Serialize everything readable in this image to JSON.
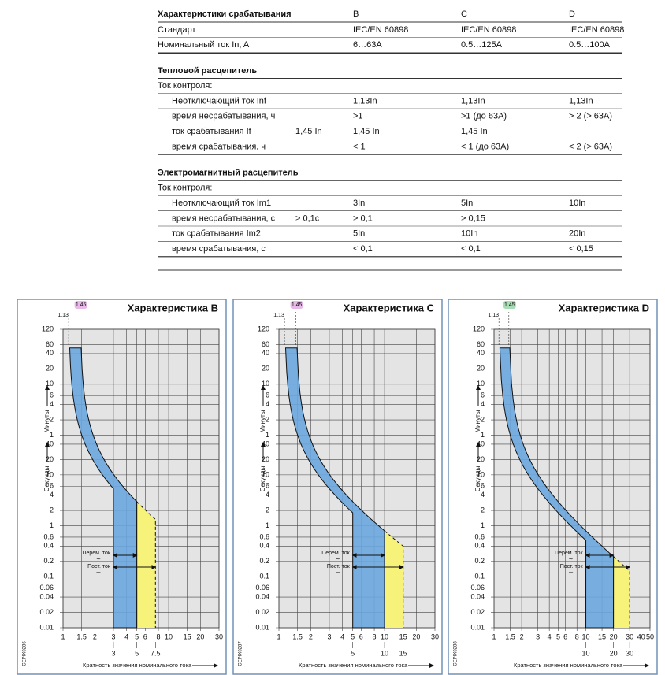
{
  "table": {
    "header": [
      "Характеристики срабатывания",
      "B",
      "C",
      "D"
    ],
    "rows": [
      {
        "label": "Стандарт",
        "values": [
          "IEC/EN 60898",
          "IEC/EN 60898",
          "IEC/EN 60898"
        ]
      },
      {
        "label": "Номинальный ток In, A",
        "values": [
          "6…63A",
          "0.5…125A",
          "0.5…100A"
        ]
      }
    ],
    "sections": [
      {
        "title": "Тепловой расцепитель",
        "subtitle": "Ток контроля:",
        "rows": [
          {
            "label": "Неотключающий ток  Inf",
            "note": null,
            "values": [
              "1,13In",
              "1,13In",
              "1,13In"
            ]
          },
          {
            "label": "время несрабатывания, ч",
            "note": null,
            "values": [
              ">1",
              ">1 (до 63A)",
              "> 2 (> 63A)"
            ]
          },
          {
            "label": "ток срабатывания If",
            "note": "1,45 In",
            "values": [
              "1,45 In",
              "1,45 In",
              null
            ]
          },
          {
            "label": "время срабатывания, ч",
            "note": null,
            "values": [
              "< 1",
              "< 1 (до 63A)",
              "< 2 (> 63A)"
            ]
          }
        ]
      },
      {
        "title": "Электромагнитный расцепитель",
        "subtitle": "Ток контроля:",
        "rows": [
          {
            "label": "Неотключающий ток Im1",
            "note": null,
            "values": [
              "3In",
              "5In",
              "10In"
            ]
          },
          {
            "label": "время несрабатывания, с",
            "note": "> 0,1с",
            "values": [
              "> 0,1",
              "> 0,15",
              null
            ]
          },
          {
            "label": "ток срабатывания Im2",
            "note": null,
            "values": [
              "5In",
              "10In",
              "20In"
            ]
          },
          {
            "label": "время срабатывания, с",
            "note": null,
            "values": [
              "< 0,1",
              "< 0,1",
              "< 0,15"
            ]
          }
        ]
      }
    ]
  },
  "charts": [
    {
      "title": "Характеристика B",
      "thermal": [
        {
          "value": 1.13,
          "label": "1.13"
        },
        {
          "value": 1.45,
          "label": "1.45"
        }
      ],
      "highlight": "#e7b8e8",
      "xlim": [
        1,
        30
      ],
      "xticks": [
        1,
        1.5,
        2,
        3,
        4,
        5,
        6,
        8,
        10,
        15,
        20,
        30
      ],
      "magnetic": [
        3,
        5,
        7.5
      ],
      "ylim": [
        0.01,
        7200
      ],
      "minutes_ticks": [
        120,
        60,
        40,
        20,
        10,
        6,
        4,
        2,
        1
      ],
      "seconds_ticks": [
        40,
        20,
        10,
        6,
        4,
        2,
        1,
        0.6,
        0.4,
        0.2,
        0.1,
        0.06,
        0.04,
        0.02,
        0.01
      ],
      "minutes_label": "Минуты",
      "seconds_label": "Секунды",
      "xlabel": "Кратность значения номинального тока",
      "code": "CEPIX0286",
      "ac_label": "Перем. ток",
      "ac_symbol": "~",
      "dc_label": "Пост. ток",
      "dc_symbol": "⎓"
    },
    {
      "title": "Характеристика C",
      "thermal": [
        {
          "value": 1.13,
          "label": "1.13"
        },
        {
          "value": 1.45,
          "label": "1.45"
        }
      ],
      "highlight": "#e7b8e8",
      "xlim": [
        1,
        30
      ],
      "xticks": [
        1,
        1.5,
        2,
        3,
        4,
        5,
        6,
        8,
        10,
        15,
        20,
        30
      ],
      "magnetic": [
        5,
        10,
        15
      ],
      "ylim": [
        0.01,
        7200
      ],
      "minutes_ticks": [
        120,
        60,
        40,
        20,
        10,
        6,
        4,
        2,
        1
      ],
      "seconds_ticks": [
        40,
        20,
        10,
        6,
        4,
        2,
        1,
        0.6,
        0.4,
        0.2,
        0.1,
        0.06,
        0.04,
        0.02,
        0.01
      ],
      "minutes_label": "Минуты",
      "seconds_label": "Секунды",
      "xlabel": "Кратность значения номинального тока",
      "code": "CEPIX0287",
      "ac_label": "Перем. ток",
      "ac_symbol": "~",
      "dc_label": "Пост. ток",
      "dc_symbol": "⎓"
    },
    {
      "title": "Характеристика D",
      "thermal": [
        {
          "value": 1.13,
          "label": "1.13"
        },
        {
          "value": 1.45,
          "label": "1.45"
        }
      ],
      "highlight": "#a8dcb4",
      "xlim": [
        1,
        50
      ],
      "xticks": [
        1,
        1.5,
        2,
        3,
        4,
        5,
        6,
        8,
        10,
        15,
        20,
        30,
        40,
        50
      ],
      "magnetic": [
        10,
        20,
        30
      ],
      "ylim": [
        0.01,
        7200
      ],
      "minutes_ticks": [
        120,
        60,
        40,
        20,
        10,
        6,
        4,
        2,
        1
      ],
      "seconds_ticks": [
        40,
        20,
        10,
        6,
        4,
        2,
        1,
        0.6,
        0.4,
        0.2,
        0.1,
        0.06,
        0.04,
        0.02,
        0.01
      ],
      "minutes_label": "Минуты",
      "seconds_label": "Секунды",
      "xlabel": "Кратность значения номинального тока",
      "code": "CEPIX0288",
      "ac_label": "Перем. ток",
      "ac_symbol": "~",
      "dc_label": "Пост. ток",
      "dc_symbol": "⎓"
    }
  ]
}
